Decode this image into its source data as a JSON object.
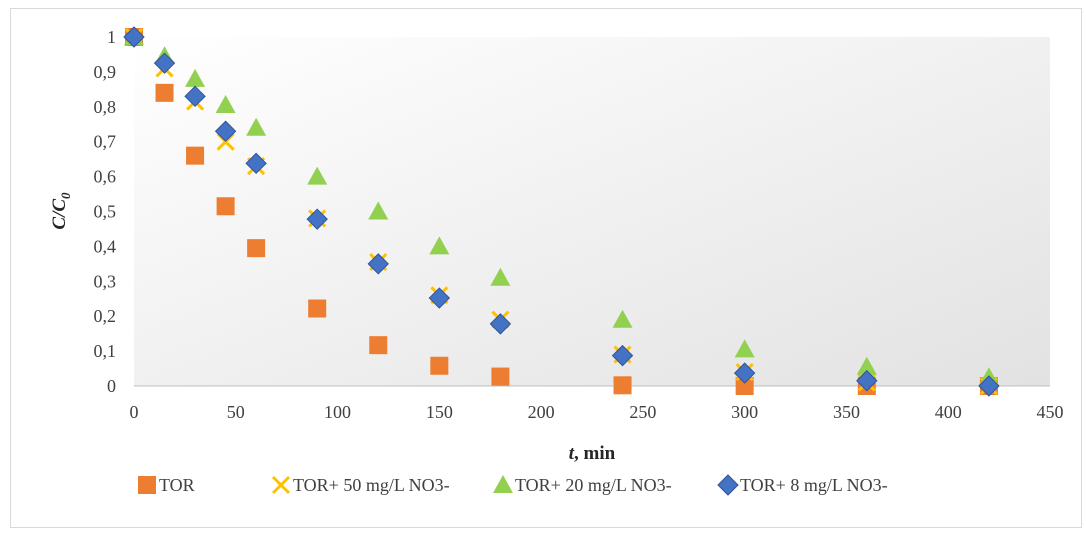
{
  "chart_data": {
    "type": "scatter",
    "title": "",
    "xlabel": "t, min",
    "xlabel_parts": {
      "var": "t",
      "rest": ", min"
    },
    "ylabel": "C/C0",
    "ylabel_parts": {
      "main": "C/C",
      "sub": "0"
    },
    "xlim": [
      0,
      450
    ],
    "ylim": [
      0,
      1
    ],
    "x_ticks": [
      "0",
      "50",
      "100",
      "150",
      "200",
      "250",
      "300",
      "350",
      "400",
      "450"
    ],
    "y_ticks": [
      "0",
      "0,1",
      "0,2",
      "0,3",
      "0,4",
      "0,5",
      "0,6",
      "0,7",
      "0,8",
      "0,9",
      "1"
    ],
    "grid": false,
    "legend_position": "bottom",
    "series": [
      {
        "name": "TOR",
        "marker": "square",
        "color": "#ED7D31",
        "x": [
          0,
          15,
          30,
          45,
          60,
          90,
          120,
          150,
          180,
          240,
          300,
          360,
          420
        ],
        "y": [
          1.0,
          0.84,
          0.66,
          0.515,
          0.395,
          0.222,
          0.117,
          0.058,
          0.027,
          0.002,
          0.0,
          0.0,
          0.0
        ]
      },
      {
        "name": "TOR+ 50 mg/L  NO3-",
        "marker": "x",
        "color": "#FFC000",
        "x": [
          0,
          15,
          30,
          45,
          60,
          90,
          120,
          150,
          180,
          240,
          300,
          360,
          420
        ],
        "y": [
          1.0,
          0.91,
          0.815,
          0.7,
          0.63,
          0.48,
          0.355,
          0.26,
          0.19,
          0.09,
          0.04,
          0.01,
          0.0
        ]
      },
      {
        "name": "TOR+ 20 mg/L  NO3-",
        "marker": "triangle",
        "color": "#92D050",
        "x": [
          0,
          15,
          30,
          45,
          60,
          90,
          120,
          150,
          180,
          240,
          300,
          360,
          420
        ],
        "y": [
          1.0,
          0.945,
          0.88,
          0.805,
          0.74,
          0.6,
          0.5,
          0.4,
          0.31,
          0.19,
          0.105,
          0.055,
          0.025
        ]
      },
      {
        "name": "TOR+ 8 mg/L  NO3-",
        "marker": "diamond",
        "color": "#4472C4",
        "x": [
          0,
          15,
          30,
          45,
          60,
          90,
          120,
          150,
          180,
          240,
          300,
          360,
          420
        ],
        "y": [
          1.0,
          0.925,
          0.83,
          0.73,
          0.638,
          0.478,
          0.35,
          0.252,
          0.178,
          0.087,
          0.037,
          0.015,
          0.0
        ]
      }
    ]
  }
}
